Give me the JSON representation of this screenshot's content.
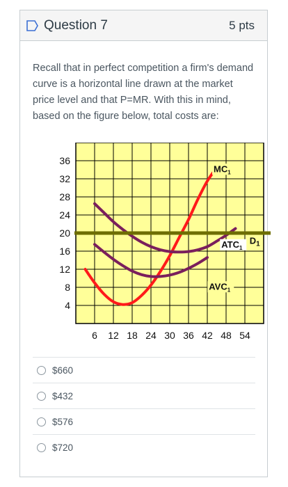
{
  "question": {
    "title": "Question 7",
    "points": "5 pts",
    "text": "Recall that in perfect competition a firm's demand curve is a horizontal line drawn at the market price level and that P=MR. With this in mind, based on the figure below, total costs are:"
  },
  "answers": [
    {
      "label": "$660"
    },
    {
      "label": "$432"
    },
    {
      "label": "$576"
    },
    {
      "label": "$720"
    }
  ],
  "colors": {
    "grid_bg": "#ffff99",
    "mc": "#ff1a1a",
    "atc": "#7a1f5c",
    "avc": "#7a1f5c",
    "demand": "#6e6e00",
    "flag": "#3b6fd4"
  },
  "chart_data": {
    "type": "line",
    "x_ticks": [
      "6",
      "12",
      "18",
      "24",
      "30",
      "36",
      "42",
      "48",
      "54"
    ],
    "y_ticks": [
      "36",
      "32",
      "28",
      "24",
      "20",
      "16",
      "12",
      "8",
      "4"
    ],
    "xlim": [
      0,
      60
    ],
    "ylim": [
      0,
      38
    ],
    "series": [
      {
        "name": "MC1",
        "x": [
          3,
          6,
          9,
          12,
          15,
          18,
          21,
          24,
          27,
          30,
          33,
          36,
          39,
          42,
          45
        ],
        "y": [
          12,
          9,
          6.5,
          4.8,
          4.2,
          4.6,
          6.2,
          8.5,
          11.5,
          15,
          19,
          23,
          27.5,
          31.5,
          34.5
        ]
      },
      {
        "name": "ATC1",
        "x": [
          6,
          9,
          12,
          15,
          18,
          21,
          24,
          27,
          30,
          33,
          36,
          39,
          42,
          45,
          48,
          51
        ],
        "y": [
          26.5,
          24.5,
          22.5,
          20.8,
          19.3,
          18,
          17,
          16.3,
          15.9,
          15.8,
          15.9,
          16.3,
          17,
          18.2,
          19.5,
          21
        ]
      },
      {
        "name": "AVC1",
        "x": [
          6,
          9,
          12,
          15,
          18,
          21,
          24,
          27,
          30,
          33,
          36,
          39,
          42
        ],
        "y": [
          17.5,
          15.8,
          14.2,
          12.8,
          11.6,
          10.8,
          10.4,
          10.4,
          10.7,
          11.3,
          12.2,
          13.3,
          14.6
        ]
      },
      {
        "name": "D1",
        "x": [
          0,
          60
        ],
        "y": [
          20,
          20
        ]
      }
    ],
    "labels": [
      {
        "text": "MC",
        "sub": "1"
      },
      {
        "text": "ATC",
        "sub": "1"
      },
      {
        "text": "AVC",
        "sub": "1"
      },
      {
        "text": "D",
        "sub": "1"
      }
    ]
  }
}
